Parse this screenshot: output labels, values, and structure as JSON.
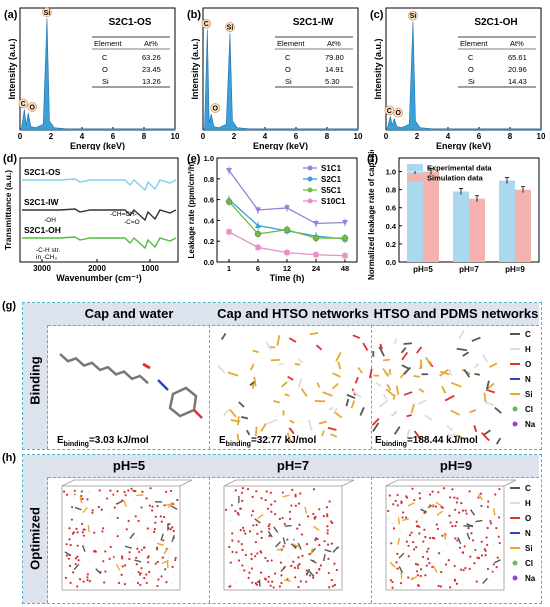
{
  "panels": {
    "a": {
      "label": "(a)",
      "title": "S2C1-OS",
      "table_header": [
        "Element",
        "At%"
      ],
      "rows": [
        [
          "C",
          "63.26"
        ],
        [
          "O",
          "23.45"
        ],
        [
          "Si",
          "13.26"
        ]
      ],
      "xlabel": "Energy (keV)",
      "ylabel": "Intensity (a.u.)",
      "peaks": [
        "C",
        "O",
        "Si"
      ],
      "xticks": [
        "0",
        "2",
        "4",
        "6",
        "8",
        "10"
      ]
    },
    "b": {
      "label": "(b)",
      "title": "S2C1-IW",
      "table_header": [
        "Element",
        "At%"
      ],
      "rows": [
        [
          "C",
          "79.80"
        ],
        [
          "O",
          "14.91"
        ],
        [
          "Si",
          "5.30"
        ]
      ],
      "xlabel": "Energy (keV)",
      "ylabel": "Intensity (a.u.)",
      "peaks": [
        "C",
        "O",
        "Si"
      ],
      "xticks": [
        "0",
        "2",
        "4",
        "6",
        "8",
        "10"
      ]
    },
    "c": {
      "label": "(c)",
      "title": "S2C1-OH",
      "table_header": [
        "Element",
        "At%"
      ],
      "rows": [
        [
          "C",
          "65.61"
        ],
        [
          "O",
          "20.96"
        ],
        [
          "Si",
          "14.43"
        ]
      ],
      "xlabel": "Energy (keV)",
      "ylabel": "Intensity (a.u.)",
      "peaks": [
        "C",
        "O",
        "Si"
      ],
      "xticks": [
        "0",
        "2",
        "4",
        "6",
        "8",
        "10"
      ]
    },
    "d": {
      "label": "(d)",
      "xlabel": "Wavenumber (cm⁻¹)",
      "ylabel": "Transmittance (a.u.)",
      "xticks": [
        "3000",
        "2000",
        "1000"
      ],
      "series": [
        "S2C1-OS",
        "S2C1-IW",
        "S2C1-OH"
      ],
      "annotations": [
        "-OH",
        "-CH=CH-",
        "-C=O",
        "-C-H str.",
        "in -CH₃"
      ]
    },
    "e": {
      "label": "(e)",
      "xlabel": "Time (h)",
      "ylabel": "Leakage rate (ppm/cm²/h)",
      "yticks": [
        "0.0",
        "0.2",
        "0.4",
        "0.6",
        "0.8",
        "1.0"
      ],
      "xticks": [
        "1",
        "6",
        "12",
        "24",
        "48"
      ]
    },
    "f": {
      "label": "(f)",
      "ylabel": "Normalized leakage rate of capsaicin",
      "yticks": [
        "0.0",
        "0.2",
        "0.4",
        "0.6",
        "0.8",
        "1.0"
      ],
      "legend": [
        "Experimental data",
        "Simulation data"
      ]
    },
    "g": {
      "label": "(g)",
      "row_label": "Binding",
      "titles": [
        "Cap and water",
        "Cap and HTSO networks",
        "HTSO and PDMS networks"
      ],
      "energies": [
        {
          "prefix": "E",
          "sub": "binding",
          "value": "=3.03 kJ/mol"
        },
        {
          "prefix": "E",
          "sub": "binding",
          "value": "=32.77 kJ/mol"
        },
        {
          "prefix": "E",
          "sub": "binding",
          "value": "=188.44 kJ/mol"
        }
      ]
    },
    "h": {
      "label": "(h)",
      "row_label": "Optimized",
      "titles": [
        "pH=5",
        "pH=7",
        "pH=9"
      ]
    },
    "atom_legend": [
      "C",
      "H",
      "O",
      "N",
      "Si",
      "Cl",
      "Na"
    ]
  },
  "chart_data": [
    {
      "type": "line",
      "id": "a",
      "title": "S2C1-OS",
      "xlabel": "Energy (keV)",
      "ylabel": "Intensity (a.u.)",
      "xlim": [
        0,
        10
      ],
      "x": [
        0.1,
        0.28,
        0.4,
        0.53,
        0.7,
        1.0,
        1.5,
        1.74,
        1.9,
        2.2,
        3,
        5,
        7,
        10
      ],
      "y": [
        0.02,
        0.18,
        0.04,
        0.15,
        0.03,
        0.02,
        0.05,
        0.98,
        0.08,
        0.02,
        0.01,
        0.01,
        0.01,
        0.01
      ]
    },
    {
      "type": "line",
      "id": "b",
      "title": "S2C1-IW",
      "xlabel": "Energy (keV)",
      "ylabel": "Intensity (a.u.)",
      "xlim": [
        0,
        10
      ],
      "x": [
        0.1,
        0.28,
        0.4,
        0.53,
        0.7,
        1.0,
        1.5,
        1.74,
        1.9,
        2.2,
        3,
        5,
        7,
        10
      ],
      "y": [
        0.02,
        0.88,
        0.06,
        0.14,
        0.03,
        0.02,
        0.05,
        0.85,
        0.08,
        0.02,
        0.01,
        0.01,
        0.01,
        0.01
      ]
    },
    {
      "type": "line",
      "id": "c",
      "title": "S2C1-OH",
      "xlabel": "Energy (keV)",
      "ylabel": "Intensity (a.u.)",
      "xlim": [
        0,
        10
      ],
      "x": [
        0.1,
        0.28,
        0.4,
        0.53,
        0.7,
        1.0,
        1.5,
        1.74,
        1.9,
        2.2,
        3,
        5,
        7,
        10
      ],
      "y": [
        0.02,
        0.12,
        0.04,
        0.1,
        0.03,
        0.02,
        0.05,
        0.95,
        0.08,
        0.02,
        0.01,
        0.01,
        0.01,
        0.01
      ]
    },
    {
      "type": "line",
      "id": "e",
      "xlabel": "Time (h)",
      "ylabel": "Leakage rate (ppm/cm²/h)",
      "ylim": [
        0,
        1.0
      ],
      "categories": [
        "1",
        "6",
        "12",
        "24",
        "48"
      ],
      "series": [
        {
          "name": "S1C1",
          "color": "#9b7fd4",
          "values": [
            0.88,
            0.5,
            0.52,
            0.37,
            0.38
          ]
        },
        {
          "name": "S2C1",
          "color": "#3aa0d8",
          "values": [
            0.6,
            0.35,
            0.3,
            0.25,
            0.22
          ]
        },
        {
          "name": "S5C1",
          "color": "#6cbf3a",
          "values": [
            0.58,
            0.27,
            0.31,
            0.23,
            0.23
          ]
        },
        {
          "name": "S10C1",
          "color": "#e88fc8",
          "values": [
            0.29,
            0.14,
            0.09,
            0.07,
            0.06
          ]
        }
      ]
    },
    {
      "type": "bar",
      "id": "f",
      "ylabel": "Normalized leakage rate of capsaicin",
      "ylim": [
        0,
        1.0
      ],
      "categories": [
        "pH=5",
        "pH=7",
        "pH=9"
      ],
      "series": [
        {
          "name": "Experimental data",
          "color": "#a9d8ef",
          "values": [
            1.0,
            0.78,
            0.9
          ]
        },
        {
          "name": "Simulation data",
          "color": "#f5b3b0",
          "values": [
            1.0,
            0.7,
            0.8
          ]
        }
      ]
    }
  ]
}
